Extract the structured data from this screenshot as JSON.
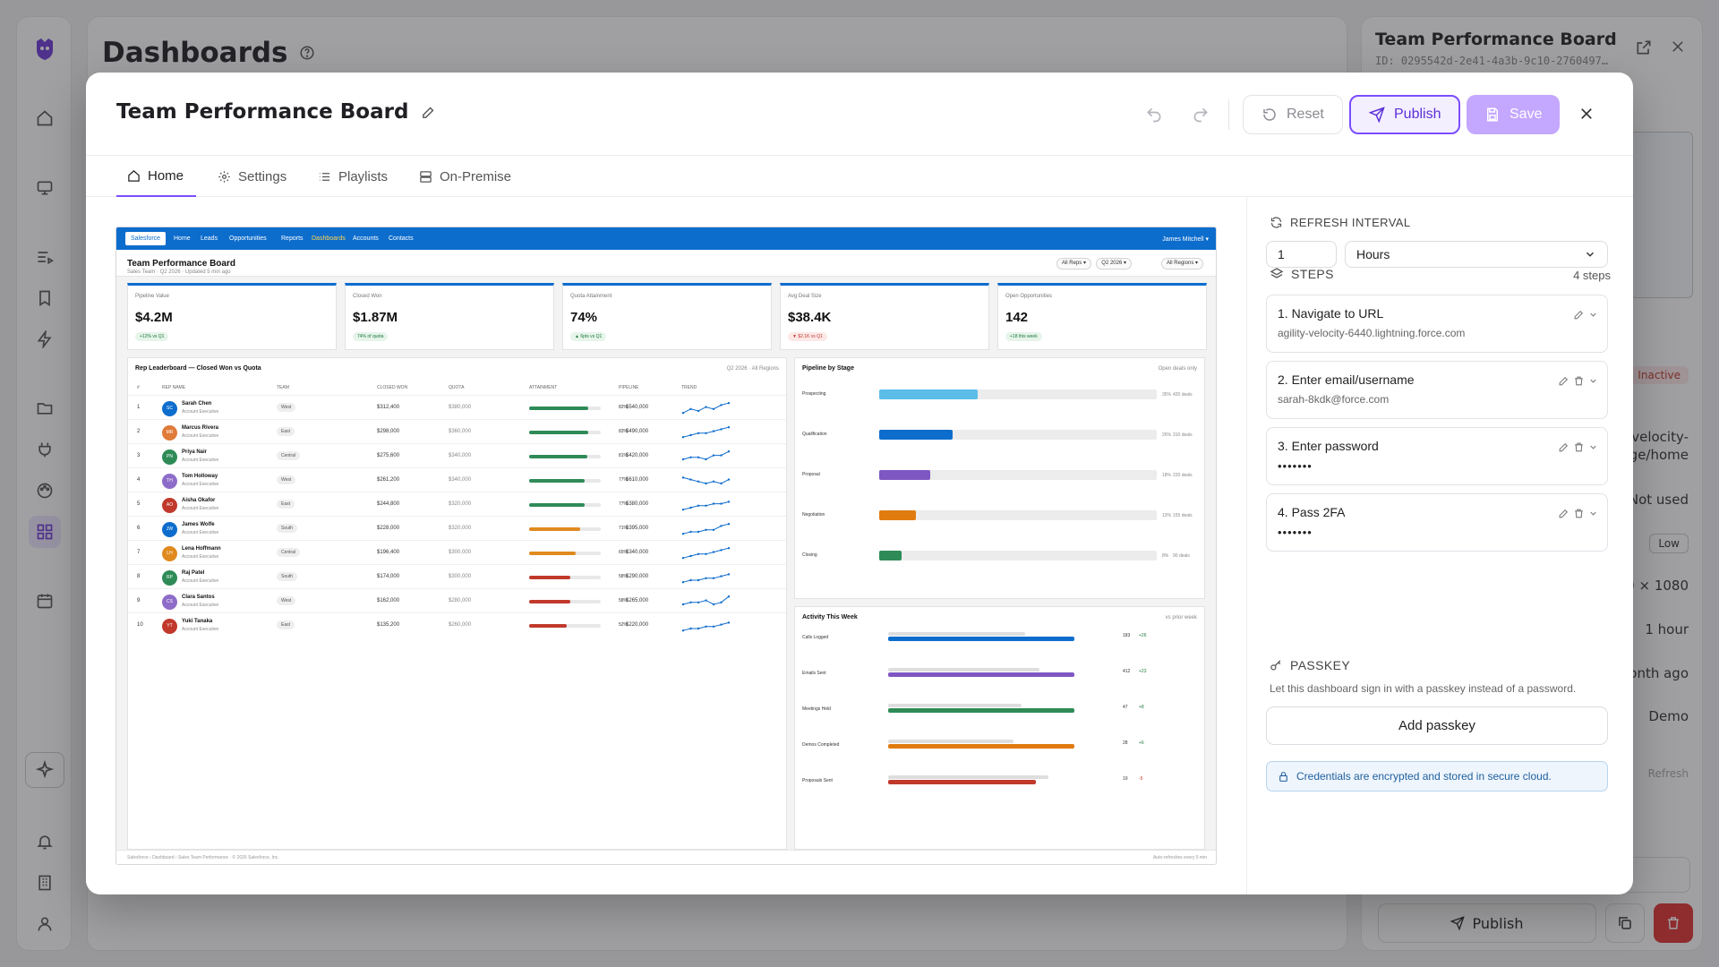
{
  "app": {
    "page_title": "Dashboards",
    "detail": {
      "title": "Team Performance Board",
      "id": "ID: 0295542d-2e41-4a3b-9c10-2760497…",
      "status": "Inactive",
      "url_partial": "velocity-",
      "url_partial2": "ge/home",
      "last_used": "Not used",
      "priority": "Low",
      "resolution": "0 × 1080",
      "refresh": "1 hour",
      "created": "onth ago",
      "tag": "Demo",
      "refresh_link": "Refresh",
      "publish_label": "Publish"
    }
  },
  "modal": {
    "title": "Team Performance Board",
    "reset_label": "Reset",
    "publish_label": "Publish",
    "save_label": "Save",
    "tabs": [
      {
        "label": "Home"
      },
      {
        "label": "Settings"
      },
      {
        "label": "Playlists"
      },
      {
        "label": "On-Premise"
      }
    ]
  },
  "preview": {
    "logo": "Salesforce",
    "nav": [
      "Home",
      "Leads",
      "Opportunities",
      "Reports",
      "Dashboards",
      "Accounts",
      "Contacts"
    ],
    "user": "James Mitchell ▾",
    "title": "Team Performance Board",
    "subtitle": "Sales Team · Q2 2026 · Updated 5 min ago",
    "filters": [
      "All Reps ▾",
      "Q2 2026 ▾",
      "All Regions ▾"
    ],
    "kpis": [
      {
        "label": "Pipeline Value",
        "value": "$4.2M",
        "delta": "+12% vs Q1",
        "neg": false
      },
      {
        "label": "Closed Won",
        "value": "$1.87M",
        "delta": "74% of quota",
        "neg": false
      },
      {
        "label": "Quota Attainment",
        "value": "74%",
        "delta": "▲ 6pts vs Q1",
        "neg": false
      },
      {
        "label": "Avg Deal Size",
        "value": "$38.4K",
        "delta": "▼ $2.1K vs Q1",
        "neg": true
      },
      {
        "label": "Open Opportunities",
        "value": "142",
        "delta": "+18 this week",
        "neg": false
      }
    ],
    "leaderboard": {
      "title": "Rep Leaderboard — Closed Won vs Quota",
      "note": "Q2 2026 · All Regions",
      "headers": [
        "#",
        "REP NAME",
        "TEAM",
        "CLOSED WON",
        "QUOTA",
        "ATTAINMENT",
        "PIPELINE",
        "TREND"
      ],
      "rows": [
        {
          "rank": "1",
          "initials": "SC",
          "name": "Sarah Chen",
          "role": "Account Executive",
          "team": "West",
          "won": "$312,400",
          "quota": "$380,000",
          "attainment": 0.82,
          "pct": "82%",
          "pipeline": "$540,000",
          "color": "#0d6dcd",
          "bar": "#2e8b57",
          "trend": [
            6,
            4,
            5,
            3,
            4,
            2,
            1
          ]
        },
        {
          "rank": "2",
          "initials": "MR",
          "name": "Marcus Rivera",
          "role": "Account Executive",
          "team": "East",
          "won": "$298,000",
          "quota": "$360,000",
          "attainment": 0.83,
          "pct": "83%",
          "pipeline": "$490,000",
          "color": "#e07b39",
          "bar": "#2e8b57",
          "trend": [
            6,
            5,
            4,
            4,
            3,
            2,
            1
          ]
        },
        {
          "rank": "3",
          "initials": "PN",
          "name": "Priya Nair",
          "role": "Account Executive",
          "team": "Central",
          "won": "$275,600",
          "quota": "$340,000",
          "attainment": 0.81,
          "pct": "81%",
          "pipeline": "$420,000",
          "color": "#2e8b57",
          "bar": "#2e8b57",
          "trend": [
            5,
            4,
            4,
            5,
            3,
            3,
            1
          ]
        },
        {
          "rank": "4",
          "initials": "TH",
          "name": "Tom Holloway",
          "role": "Account Executive",
          "team": "West",
          "won": "$261,200",
          "quota": "$340,000",
          "attainment": 0.77,
          "pct": "77%",
          "pipeline": "$610,000",
          "color": "#8e6cc9",
          "bar": "#2e8b57",
          "trend": [
            2,
            3,
            4,
            5,
            4,
            5,
            3
          ]
        },
        {
          "rank": "5",
          "initials": "AO",
          "name": "Aisha Okafor",
          "role": "Account Executive",
          "team": "East",
          "won": "$244,800",
          "quota": "$320,000",
          "attainment": 0.77,
          "pct": "77%",
          "pipeline": "$380,000",
          "color": "#c0392b",
          "bar": "#2e8b57",
          "trend": [
            6,
            5,
            4,
            4,
            3,
            3,
            2
          ]
        },
        {
          "rank": "6",
          "initials": "JW",
          "name": "James Wolfe",
          "role": "Account Executive",
          "team": "South",
          "won": "$228,000",
          "quota": "$320,000",
          "attainment": 0.71,
          "pct": "71%",
          "pipeline": "$395,000",
          "color": "#0d6dcd",
          "bar": "#e08a1e",
          "trend": [
            6,
            5,
            5,
            4,
            4,
            2,
            1
          ]
        },
        {
          "rank": "7",
          "initials": "LH",
          "name": "Lena Hoffmann",
          "role": "Account Executive",
          "team": "Central",
          "won": "$196,400",
          "quota": "$300,000",
          "attainment": 0.65,
          "pct": "65%",
          "pipeline": "$340,000",
          "color": "#e08a1e",
          "bar": "#e08a1e",
          "trend": [
            6,
            5,
            4,
            4,
            3,
            2,
            1
          ]
        },
        {
          "rank": "8",
          "initials": "RP",
          "name": "Raj Patel",
          "role": "Account Executive",
          "team": "South",
          "won": "$174,000",
          "quota": "$300,000",
          "attainment": 0.58,
          "pct": "58%",
          "pipeline": "$290,000",
          "color": "#2e8b57",
          "bar": "#c0392b",
          "trend": [
            6,
            5,
            5,
            4,
            4,
            3,
            2
          ]
        },
        {
          "rank": "9",
          "initials": "CS",
          "name": "Clara Santos",
          "role": "Account Executive",
          "team": "West",
          "won": "$162,000",
          "quota": "$280,000",
          "attainment": 0.58,
          "pct": "58%",
          "pipeline": "$265,000",
          "color": "#8e6cc9",
          "bar": "#c0392b",
          "trend": [
            5,
            4,
            4,
            3,
            5,
            4,
            1
          ]
        },
        {
          "rank": "10",
          "initials": "YT",
          "name": "Yuki Tanaka",
          "role": "Account Executive",
          "team": "East",
          "won": "$135,200",
          "quota": "$260,000",
          "attainment": 0.52,
          "pct": "52%",
          "pipeline": "$220,000",
          "color": "#c0392b",
          "bar": "#c0392b",
          "trend": [
            6,
            5,
            5,
            4,
            4,
            3,
            2
          ]
        }
      ]
    },
    "stages": {
      "title": "Pipeline by Stage",
      "note": "Open deals only",
      "items": [
        {
          "label": "Prospecting",
          "share": 0.35,
          "pct": "35%",
          "deals": "420 deals",
          "color": "#5bbde8"
        },
        {
          "label": "Qualification",
          "share": 0.26,
          "pct": "26%",
          "deals": "310 deals",
          "color": "#0d6dcd"
        },
        {
          "label": "Proposal",
          "share": 0.18,
          "pct": "18%",
          "deals": "220 deals",
          "color": "#7e57c2"
        },
        {
          "label": "Negotiation",
          "share": 0.13,
          "pct": "13%",
          "deals": "155 deals",
          "color": "#e07b10"
        },
        {
          "label": "Closing",
          "share": 0.08,
          "pct": "8%",
          "deals": "90 deals",
          "color": "#2e8b57"
        }
      ]
    },
    "activity": {
      "title": "Activity This Week",
      "note": "vs prior week",
      "items": [
        {
          "label": "Calls Logged",
          "value": 183,
          "prior": 157,
          "delta": "+26",
          "neg": false,
          "color": "#0d6dcd"
        },
        {
          "label": "Emails Sent",
          "value": 412,
          "prior": 389,
          "delta": "+23",
          "neg": false,
          "color": "#7e57c2"
        },
        {
          "label": "Meetings Held",
          "value": 47,
          "prior": 39,
          "delta": "+8",
          "neg": false,
          "color": "#2e8b57"
        },
        {
          "label": "Demos Completed",
          "value": 28,
          "prior": 22,
          "delta": "+6",
          "neg": false,
          "color": "#e07b10"
        },
        {
          "label": "Proposals Sent",
          "value": 19,
          "prior": 24,
          "delta": "-5",
          "neg": true,
          "color": "#c0392b"
        }
      ]
    },
    "footer_left": "Salesforce › Dashboard › Sales Team Performance · © 2026 Salesforce, Inc.",
    "footer_right": "Auto-refreshes every 5 min"
  },
  "panel": {
    "refresh_title": "REFRESH INTERVAL",
    "refresh_value": "1",
    "refresh_unit": "Hours",
    "steps_title": "STEPS",
    "steps_count": "4 steps",
    "steps": [
      {
        "title": "1. Navigate to URL",
        "detail": "agility-velocity-6440.lightning.force.com"
      },
      {
        "title": "2. Enter email/username",
        "detail": "sarah-8kdk@force.com"
      },
      {
        "title": "3. Enter password",
        "detail": "•••••••"
      },
      {
        "title": "4. Pass 2FA",
        "detail": "•••••••"
      }
    ],
    "passkey_title": "PASSKEY",
    "passkey_desc": "Let this dashboard sign in with a passkey instead of a password.",
    "passkey_button": "Add passkey",
    "encryption_note": "Credentials are encrypted and stored in secure cloud."
  }
}
